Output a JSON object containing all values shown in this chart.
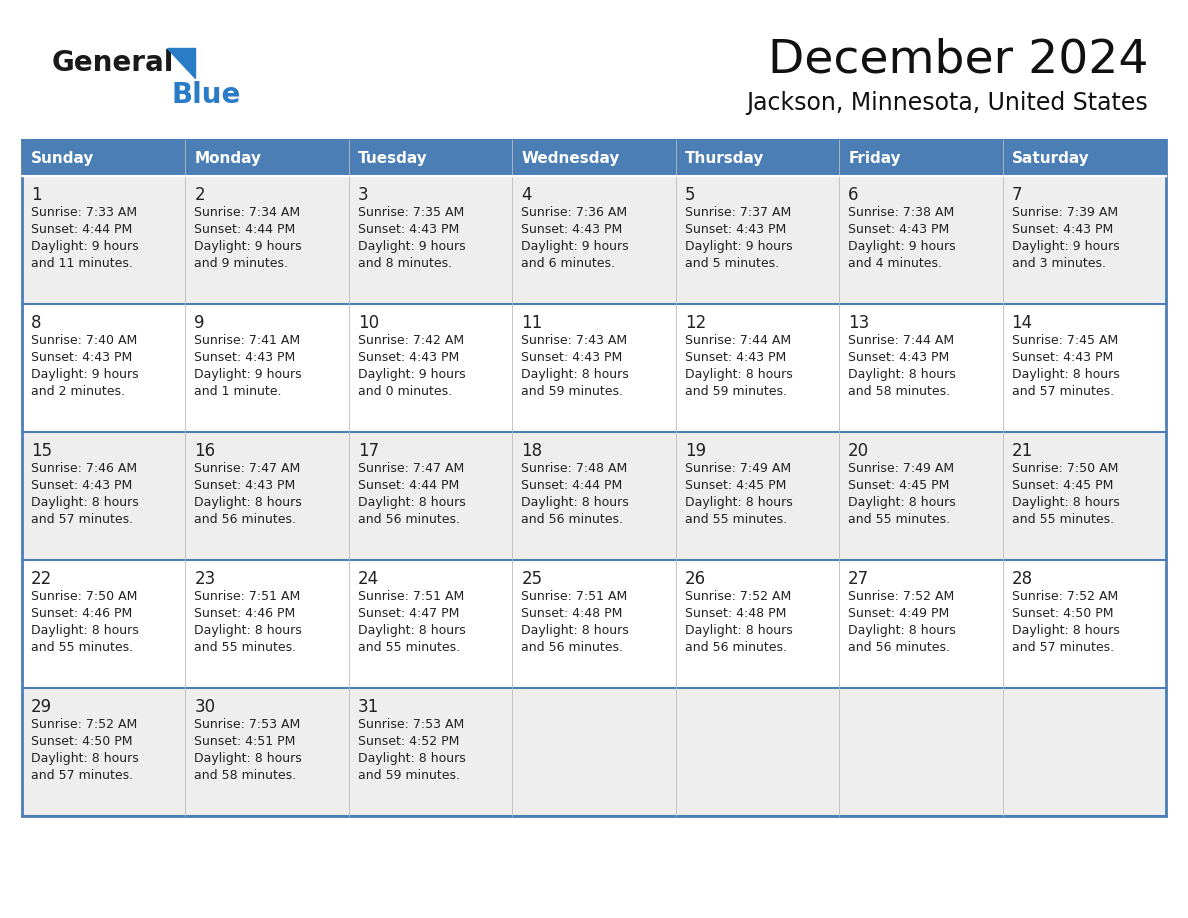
{
  "title": "December 2024",
  "subtitle": "Jackson, Minnesota, United States",
  "header_bg": "#4a7eb5",
  "header_text_color": "#FFFFFF",
  "days_of_week": [
    "Sunday",
    "Monday",
    "Tuesday",
    "Wednesday",
    "Thursday",
    "Friday",
    "Saturday"
  ],
  "row_bg_odd": "#eeeeee",
  "row_bg_even": "#FFFFFF",
  "cell_text_color": "#222222",
  "border_color": "#4a7eb5",
  "logo_general_color": "#1a1a1a",
  "logo_blue_color": "#2a7cc7",
  "logo_triangle_color": "#2a7cc7",
  "calendar_data": [
    [
      {
        "day": 1,
        "sunrise": "7:33 AM",
        "sunset": "4:44 PM",
        "daylight_h": "9 hours",
        "daylight_m": "and 11 minutes."
      },
      {
        "day": 2,
        "sunrise": "7:34 AM",
        "sunset": "4:44 PM",
        "daylight_h": "9 hours",
        "daylight_m": "and 9 minutes."
      },
      {
        "day": 3,
        "sunrise": "7:35 AM",
        "sunset": "4:43 PM",
        "daylight_h": "9 hours",
        "daylight_m": "and 8 minutes."
      },
      {
        "day": 4,
        "sunrise": "7:36 AM",
        "sunset": "4:43 PM",
        "daylight_h": "9 hours",
        "daylight_m": "and 6 minutes."
      },
      {
        "day": 5,
        "sunrise": "7:37 AM",
        "sunset": "4:43 PM",
        "daylight_h": "9 hours",
        "daylight_m": "and 5 minutes."
      },
      {
        "day": 6,
        "sunrise": "7:38 AM",
        "sunset": "4:43 PM",
        "daylight_h": "9 hours",
        "daylight_m": "and 4 minutes."
      },
      {
        "day": 7,
        "sunrise": "7:39 AM",
        "sunset": "4:43 PM",
        "daylight_h": "9 hours",
        "daylight_m": "and 3 minutes."
      }
    ],
    [
      {
        "day": 8,
        "sunrise": "7:40 AM",
        "sunset": "4:43 PM",
        "daylight_h": "9 hours",
        "daylight_m": "and 2 minutes."
      },
      {
        "day": 9,
        "sunrise": "7:41 AM",
        "sunset": "4:43 PM",
        "daylight_h": "9 hours",
        "daylight_m": "and 1 minute."
      },
      {
        "day": 10,
        "sunrise": "7:42 AM",
        "sunset": "4:43 PM",
        "daylight_h": "9 hours",
        "daylight_m": "and 0 minutes."
      },
      {
        "day": 11,
        "sunrise": "7:43 AM",
        "sunset": "4:43 PM",
        "daylight_h": "8 hours",
        "daylight_m": "and 59 minutes."
      },
      {
        "day": 12,
        "sunrise": "7:44 AM",
        "sunset": "4:43 PM",
        "daylight_h": "8 hours",
        "daylight_m": "and 59 minutes."
      },
      {
        "day": 13,
        "sunrise": "7:44 AM",
        "sunset": "4:43 PM",
        "daylight_h": "8 hours",
        "daylight_m": "and 58 minutes."
      },
      {
        "day": 14,
        "sunrise": "7:45 AM",
        "sunset": "4:43 PM",
        "daylight_h": "8 hours",
        "daylight_m": "and 57 minutes."
      }
    ],
    [
      {
        "day": 15,
        "sunrise": "7:46 AM",
        "sunset": "4:43 PM",
        "daylight_h": "8 hours",
        "daylight_m": "and 57 minutes."
      },
      {
        "day": 16,
        "sunrise": "7:47 AM",
        "sunset": "4:43 PM",
        "daylight_h": "8 hours",
        "daylight_m": "and 56 minutes."
      },
      {
        "day": 17,
        "sunrise": "7:47 AM",
        "sunset": "4:44 PM",
        "daylight_h": "8 hours",
        "daylight_m": "and 56 minutes."
      },
      {
        "day": 18,
        "sunrise": "7:48 AM",
        "sunset": "4:44 PM",
        "daylight_h": "8 hours",
        "daylight_m": "and 56 minutes."
      },
      {
        "day": 19,
        "sunrise": "7:49 AM",
        "sunset": "4:45 PM",
        "daylight_h": "8 hours",
        "daylight_m": "and 55 minutes."
      },
      {
        "day": 20,
        "sunrise": "7:49 AM",
        "sunset": "4:45 PM",
        "daylight_h": "8 hours",
        "daylight_m": "and 55 minutes."
      },
      {
        "day": 21,
        "sunrise": "7:50 AM",
        "sunset": "4:45 PM",
        "daylight_h": "8 hours",
        "daylight_m": "and 55 minutes."
      }
    ],
    [
      {
        "day": 22,
        "sunrise": "7:50 AM",
        "sunset": "4:46 PM",
        "daylight_h": "8 hours",
        "daylight_m": "and 55 minutes."
      },
      {
        "day": 23,
        "sunrise": "7:51 AM",
        "sunset": "4:46 PM",
        "daylight_h": "8 hours",
        "daylight_m": "and 55 minutes."
      },
      {
        "day": 24,
        "sunrise": "7:51 AM",
        "sunset": "4:47 PM",
        "daylight_h": "8 hours",
        "daylight_m": "and 55 minutes."
      },
      {
        "day": 25,
        "sunrise": "7:51 AM",
        "sunset": "4:48 PM",
        "daylight_h": "8 hours",
        "daylight_m": "and 56 minutes."
      },
      {
        "day": 26,
        "sunrise": "7:52 AM",
        "sunset": "4:48 PM",
        "daylight_h": "8 hours",
        "daylight_m": "and 56 minutes."
      },
      {
        "day": 27,
        "sunrise": "7:52 AM",
        "sunset": "4:49 PM",
        "daylight_h": "8 hours",
        "daylight_m": "and 56 minutes."
      },
      {
        "day": 28,
        "sunrise": "7:52 AM",
        "sunset": "4:50 PM",
        "daylight_h": "8 hours",
        "daylight_m": "and 57 minutes."
      }
    ],
    [
      {
        "day": 29,
        "sunrise": "7:52 AM",
        "sunset": "4:50 PM",
        "daylight_h": "8 hours",
        "daylight_m": "and 57 minutes."
      },
      {
        "day": 30,
        "sunrise": "7:53 AM",
        "sunset": "4:51 PM",
        "daylight_h": "8 hours",
        "daylight_m": "and 58 minutes."
      },
      {
        "day": 31,
        "sunrise": "7:53 AM",
        "sunset": "4:52 PM",
        "daylight_h": "8 hours",
        "daylight_m": "and 59 minutes."
      },
      null,
      null,
      null,
      null
    ]
  ]
}
